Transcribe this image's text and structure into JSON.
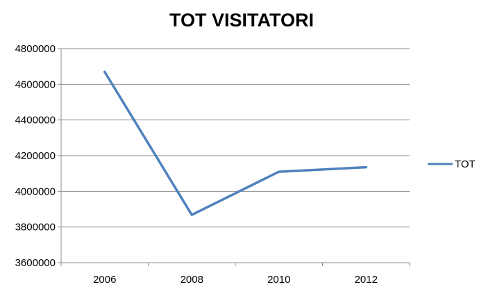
{
  "chart_data": {
    "type": "line",
    "title": "TOT VISITATORI",
    "xlabel": "",
    "ylabel": "",
    "categories": [
      "2006",
      "2008",
      "2010",
      "2012"
    ],
    "series": [
      {
        "name": "TOT",
        "values": [
          4670000,
          3868000,
          4110000,
          4135000
        ],
        "color": "#4f81bd"
      }
    ],
    "ylim": [
      3600000,
      4800000
    ],
    "yticks": [
      3600000,
      3800000,
      4000000,
      4200000,
      4400000,
      4600000,
      4800000
    ],
    "grid": true,
    "legend": "right"
  }
}
